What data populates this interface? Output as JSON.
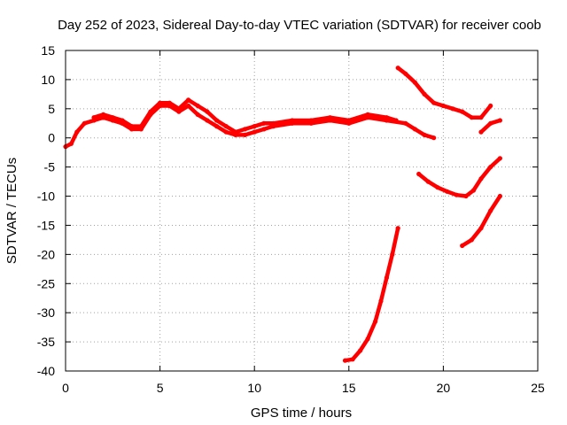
{
  "chart_data": {
    "type": "scatter",
    "title": "Day 252 of 2023, Sidereal Day-to-day VTEC variation (SDTVAR) for receiver coob",
    "xlabel": "GPS time / hours",
    "ylabel": "SDTVAR / TECUs",
    "xlim": [
      0,
      25
    ],
    "ylim": [
      -40,
      15
    ],
    "grid": true,
    "x_ticks": [
      0,
      5,
      10,
      15,
      20,
      25
    ],
    "y_ticks": [
      15,
      10,
      5,
      0,
      -5,
      -10,
      -15,
      -20,
      -25,
      -30,
      -35,
      -40
    ],
    "series_color": "#ff0000",
    "series": [
      {
        "name": "arc-main",
        "points": [
          [
            0,
            -1.5
          ],
          [
            0.3,
            -1
          ],
          [
            0.6,
            1
          ],
          [
            1,
            2.5
          ],
          [
            1.5,
            3
          ],
          [
            2,
            3.5
          ],
          [
            2.5,
            3
          ],
          [
            3,
            2.5
          ],
          [
            3.5,
            1.5
          ],
          [
            4,
            1.5
          ],
          [
            4.5,
            4
          ],
          [
            5,
            5.5
          ],
          [
            5.5,
            5.5
          ],
          [
            6,
            4.5
          ],
          [
            6.5,
            5.5
          ],
          [
            7,
            4
          ],
          [
            7.5,
            3
          ],
          [
            8,
            2
          ],
          [
            8.5,
            1
          ],
          [
            9,
            0.5
          ],
          [
            9.5,
            0.5
          ],
          [
            10,
            1
          ],
          [
            10.5,
            1.5
          ],
          [
            11,
            2
          ],
          [
            12,
            2.5
          ],
          [
            13,
            2.5
          ],
          [
            14,
            3
          ],
          [
            15,
            2.5
          ],
          [
            16,
            3.5
          ],
          [
            17,
            3
          ],
          [
            18,
            2.5
          ],
          [
            18.5,
            1.5
          ],
          [
            19,
            0.5
          ],
          [
            19.5,
            0
          ]
        ]
      },
      {
        "name": "arc-main-upper",
        "points": [
          [
            1.5,
            3.5
          ],
          [
            2,
            4
          ],
          [
            2.5,
            3.5
          ],
          [
            3,
            3
          ],
          [
            3.5,
            2
          ],
          [
            4,
            2
          ],
          [
            4.5,
            4.5
          ],
          [
            5,
            6
          ],
          [
            5.5,
            6
          ],
          [
            6,
            5
          ],
          [
            6.5,
            6.5
          ],
          [
            7,
            5.5
          ],
          [
            7.5,
            4.5
          ],
          [
            8,
            3
          ],
          [
            8.5,
            2
          ],
          [
            9,
            1
          ],
          [
            9.5,
            1.5
          ],
          [
            10,
            2
          ],
          [
            10.5,
            2.5
          ],
          [
            11,
            2.5
          ],
          [
            12,
            3
          ],
          [
            13,
            3
          ],
          [
            14,
            3.5
          ],
          [
            15,
            3
          ],
          [
            16,
            4
          ],
          [
            17,
            3.5
          ],
          [
            17.5,
            3
          ]
        ]
      },
      {
        "name": "arc-a",
        "points": [
          [
            17.6,
            12
          ],
          [
            18,
            11
          ],
          [
            18.5,
            9.5
          ],
          [
            19,
            7.5
          ],
          [
            19.5,
            6
          ],
          [
            20,
            5.5
          ],
          [
            20.5,
            5
          ],
          [
            21,
            4.5
          ],
          [
            21.5,
            3.5
          ],
          [
            22,
            3.5
          ],
          [
            22.5,
            5.5
          ]
        ]
      },
      {
        "name": "arc-b",
        "points": [
          [
            22,
            1
          ],
          [
            22.5,
            2.5
          ],
          [
            23,
            3
          ]
        ]
      },
      {
        "name": "arc-c",
        "points": [
          [
            18.7,
            -6.2
          ],
          [
            19.2,
            -7.5
          ],
          [
            19.7,
            -8.5
          ],
          [
            20.2,
            -9.2
          ],
          [
            20.7,
            -9.8
          ],
          [
            21.2,
            -10
          ],
          [
            21.6,
            -9
          ],
          [
            22,
            -7
          ],
          [
            22.5,
            -5
          ],
          [
            23,
            -3.5
          ]
        ]
      },
      {
        "name": "arc-d",
        "points": [
          [
            21,
            -18.5
          ],
          [
            21.5,
            -17.5
          ],
          [
            22,
            -15.5
          ],
          [
            22.5,
            -12.5
          ],
          [
            23,
            -10
          ]
        ]
      },
      {
        "name": "arc-e",
        "points": [
          [
            14.8,
            -38.2
          ],
          [
            15.2,
            -38
          ],
          [
            15.6,
            -36.5
          ],
          [
            16,
            -34.5
          ],
          [
            16.4,
            -31.5
          ],
          [
            16.7,
            -28
          ],
          [
            17,
            -24
          ],
          [
            17.3,
            -20
          ],
          [
            17.6,
            -15.5
          ]
        ]
      }
    ]
  }
}
